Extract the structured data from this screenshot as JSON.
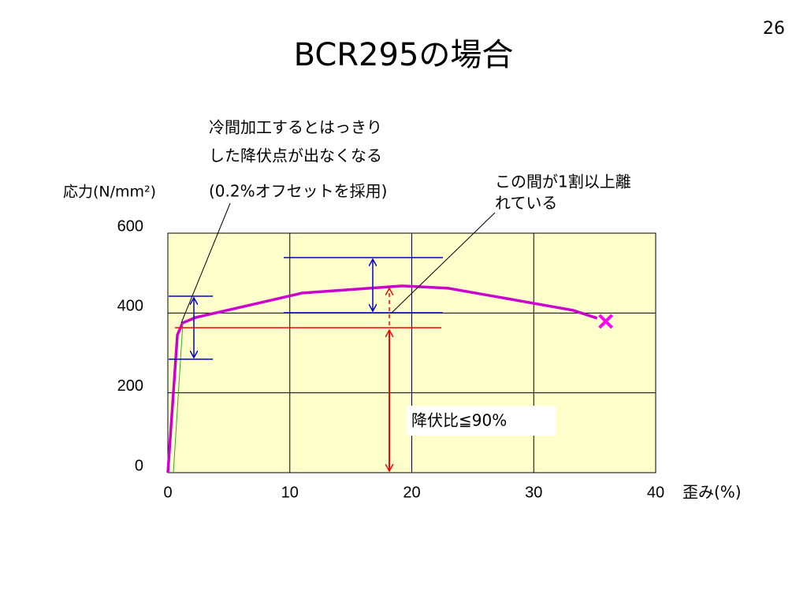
{
  "page_number": "26",
  "chart_data": {
    "type": "line",
    "title": "BCR295の場合",
    "y_label": "応力(N/mm²)",
    "x_label": "歪み(%)",
    "x": [
      0,
      0.78,
      1.2,
      2.3,
      7.6,
      11,
      19.2,
      23,
      33.2,
      35.2
    ],
    "values": [
      0,
      345,
      375,
      389,
      426,
      450,
      468,
      462,
      407,
      387
    ],
    "color": "#cc00cc",
    "end_marker": {
      "x": 35.9,
      "y": 379,
      "color": "#ff00ff"
    },
    "xlim": [
      0,
      40
    ],
    "ylim": [
      0,
      600
    ],
    "xticks": [
      0,
      10,
      20,
      30,
      40
    ],
    "yticks": [
      0,
      200,
      400,
      600
    ],
    "grid": true,
    "plot_background": "#ffffcc",
    "annotations": [
      {
        "lines": [
          "冷間加工するとはっきり",
          "した降伏点が出なくなる",
          "(0.2%オフセットを採用)"
        ]
      },
      {
        "lines": [
          "この間が1割以上離",
          "れている"
        ]
      },
      {
        "lines": [
          "降伏比≦90%"
        ]
      }
    ]
  }
}
